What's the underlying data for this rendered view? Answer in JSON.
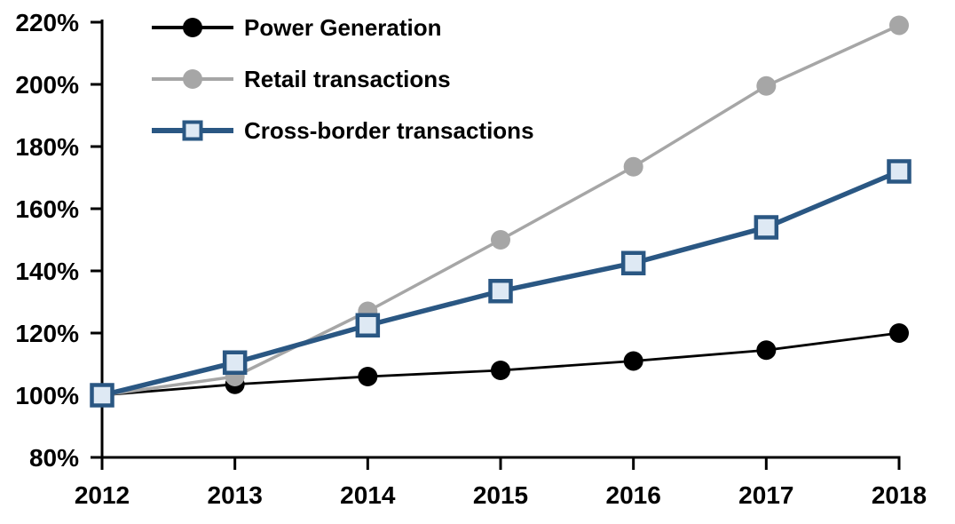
{
  "chart_data": {
    "type": "line",
    "title": "",
    "x": [
      2012,
      2013,
      2014,
      2015,
      2016,
      2017,
      2018
    ],
    "y_axis": {
      "min": 80,
      "max": 220,
      "step": 20,
      "suffix": "%",
      "tick_labels": [
        "220%",
        "200%",
        "180%",
        "160%",
        "140%",
        "120%",
        "100%",
        "80%"
      ]
    },
    "grid": false,
    "legend_position": "top-left-inside",
    "series": [
      {
        "name": "Power Generation",
        "color": "#000000",
        "marker": "circle",
        "marker_fill": "#000000",
        "values": [
          100,
          103.5,
          106,
          108,
          111,
          114.5,
          120
        ]
      },
      {
        "name": "Retail transactions",
        "color": "#A6A6A6",
        "marker": "circle",
        "marker_fill": "#A6A6A6",
        "values": [
          100,
          106,
          127,
          150,
          173.5,
          199.5,
          219
        ]
      },
      {
        "name": "Cross-border transactions",
        "color": "#2A5783",
        "marker": "square",
        "marker_fill": "#DEE9F4",
        "values": [
          100,
          110.5,
          122.5,
          133.5,
          142.5,
          154,
          172
        ]
      }
    ]
  }
}
